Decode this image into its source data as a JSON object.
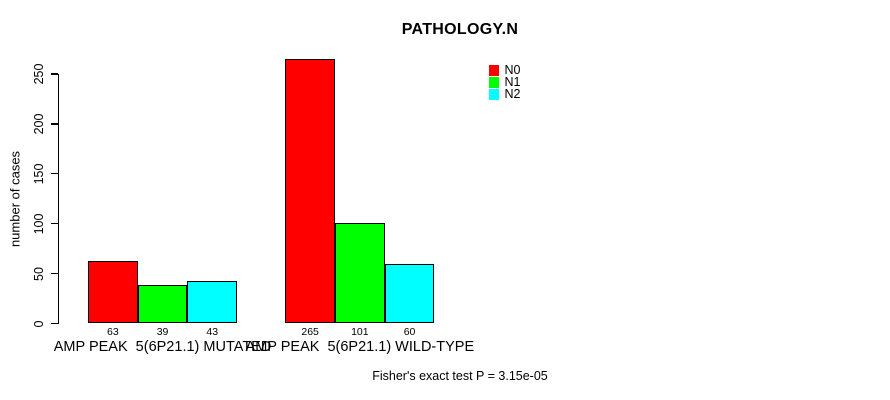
{
  "figure": {
    "background": "#ffffff",
    "text_color": "#000000"
  },
  "chart_data": {
    "type": "bar",
    "title": "PATHOLOGY.N",
    "ylabel": "number of cases",
    "xlabel": "",
    "ylim": [
      0,
      265
    ],
    "yticks": [
      0,
      50,
      100,
      150,
      200,
      250
    ],
    "grid": false,
    "legend_position": "top-right-inside",
    "categories": [
      "AMP PEAK  5(6P21.1) MUTATED",
      "AMP PEAK  5(6P21.1) WILD-TYPE"
    ],
    "series": [
      {
        "name": "N0",
        "color": "#ff0000",
        "values": [
          63,
          265
        ]
      },
      {
        "name": "N1",
        "color": "#00ff00",
        "values": [
          39,
          101
        ]
      },
      {
        "name": "N2",
        "color": "#00ffff",
        "values": [
          43,
          60
        ]
      }
    ],
    "bar_value_labels": [
      [
        63,
        39,
        43
      ],
      [
        265,
        101,
        60
      ]
    ],
    "bar_border_color": "#000000",
    "annotation": "Fisher's exact test P = 3.15e-05"
  }
}
